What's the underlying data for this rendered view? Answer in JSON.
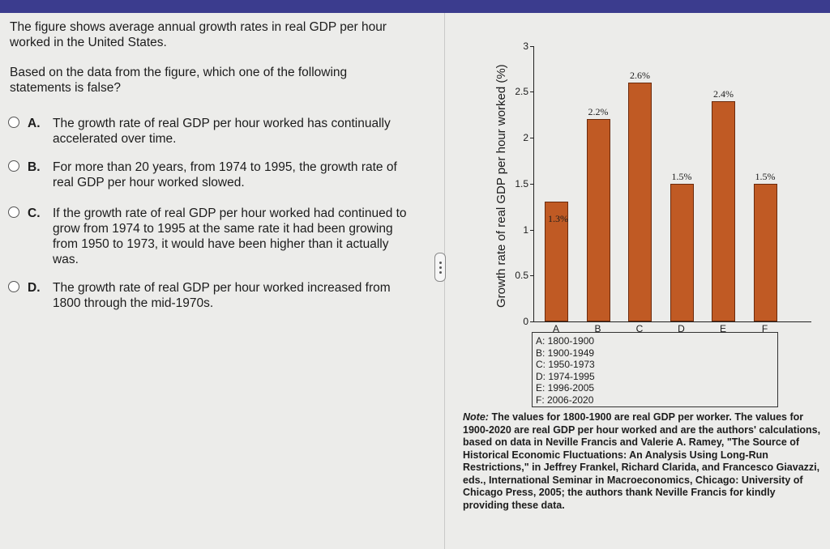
{
  "question": {
    "intro": "The figure shows average annual growth rates in real GDP per hour worked in the United States.",
    "prompt": "Based on the data from the figure, which one of the following statements is false?",
    "options": [
      {
        "letter": "A.",
        "text": "The growth rate of real GDP per hour worked has continually accelerated over time."
      },
      {
        "letter": "B.",
        "text": "For more than 20 years, from 1974 to 1995, the growth rate of real GDP per hour worked slowed."
      },
      {
        "letter": "C.",
        "text": "If the growth rate of real GDP per hour worked had continued to grow from 1974 to 1995 at the same rate it had been growing from 1950 to 1973, it would have been higher than it actually was."
      },
      {
        "letter": "D.",
        "text": "The growth rate of real GDP per hour worked increased from 1800 through the mid-1970s."
      }
    ]
  },
  "chart_data": {
    "type": "bar",
    "ylabel": "Growth rate of real GDP per hour worked (%)",
    "categories": [
      "A",
      "B",
      "C",
      "D",
      "E",
      "F"
    ],
    "values": [
      1.3,
      2.2,
      2.6,
      1.5,
      2.4,
      1.5
    ],
    "value_labels": [
      "1.3%",
      "2.2%",
      "2.6%",
      "1.5%",
      "2.4%",
      "1.5%"
    ],
    "yticks": [
      "0",
      "0.5",
      "1",
      "1.5",
      "2",
      "2.5",
      "3"
    ],
    "ylim": [
      0,
      3
    ],
    "bar_color": "#c05a24",
    "legend": [
      "A: 1800-1900",
      "B: 1900-1949",
      "C: 1950-1973",
      "D: 1974-1995",
      "E: 1996-2005",
      "F: 2006-2020"
    ]
  },
  "note": {
    "label": "Note:",
    "text": "The values for 1800-1900 are real GDP per worker. The values for 1900-2020 are real GDP per hour worked and are the authors' calculations, based on data in Neville Francis and Valerie A. Ramey, \"The Source of Historical Economic Fluctuations: An Analysis Using Long-Run Restrictions,\" in Jeffrey Frankel, Richard Clarida, and Francesco Giavazzi, eds., International Seminar in Macroeconomics, Chicago: University of Chicago Press, 2005; the authors thank Neville Francis for kindly providing these data."
  }
}
